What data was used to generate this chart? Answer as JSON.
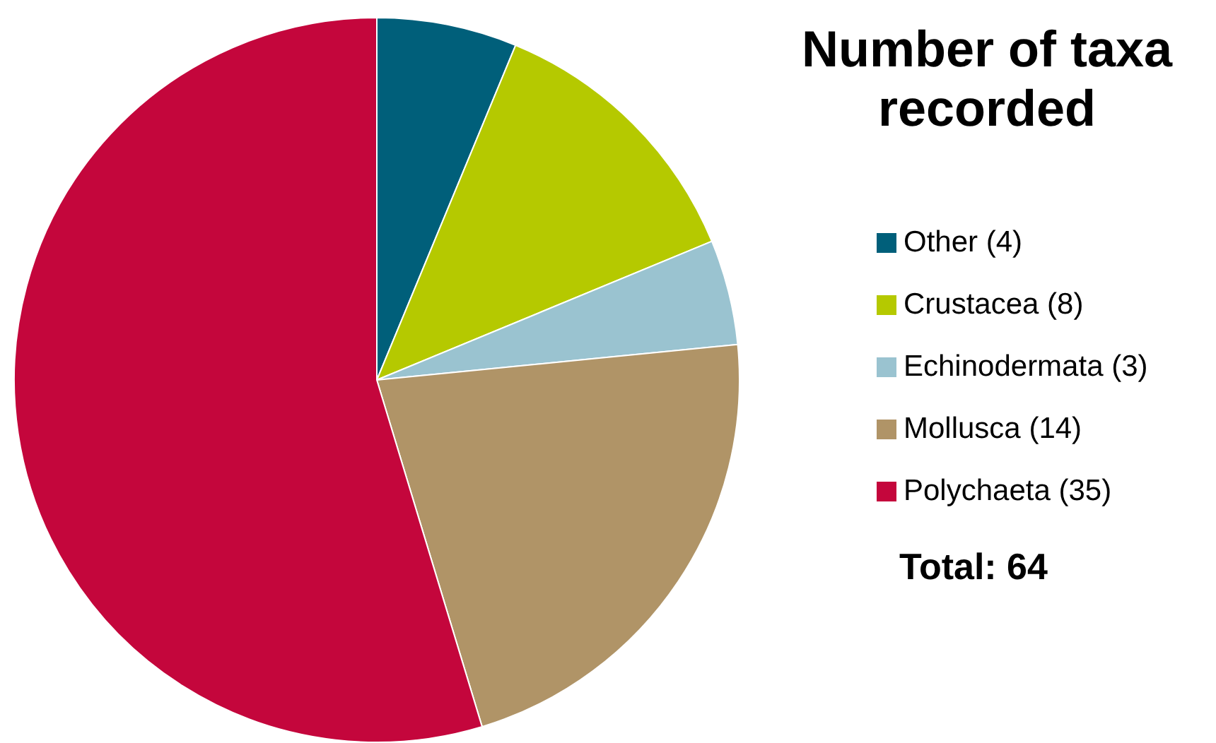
{
  "chart_data": {
    "type": "pie",
    "title": "Number of taxa recorded",
    "categories": [
      "Other (4)",
      "Crustacea (8)",
      "Echinodermata (3)",
      "Mollusca (14)",
      "Polychaeta (35)"
    ],
    "values": [
      4,
      8,
      3,
      14,
      35
    ],
    "colors": [
      "#005f7a",
      "#b5c900",
      "#9ac3d0",
      "#b09467",
      "#c4063c"
    ],
    "legend": "right",
    "annotations": [
      "Total: 64"
    ]
  }
}
